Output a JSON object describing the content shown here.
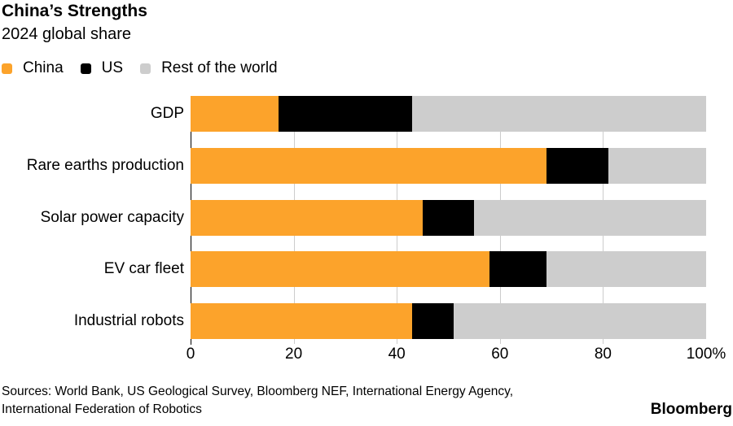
{
  "header": {
    "title": "China’s Strengths",
    "subtitle": "2024 global share"
  },
  "chart_data": {
    "type": "bar",
    "orientation": "horizontal",
    "stacked": true,
    "title": "China’s Strengths",
    "subtitle": "2024 global share",
    "categories": [
      "GDP",
      "Rare earths production",
      "Solar power capacity",
      "EV car fleet",
      "Industrial robots"
    ],
    "series": [
      {
        "name": "China",
        "color": "#FCA32B",
        "values": [
          17,
          69,
          45,
          58,
          43
        ]
      },
      {
        "name": "US",
        "color": "#000000",
        "values": [
          26,
          12,
          10,
          11,
          8
        ]
      },
      {
        "name": "Rest of the world",
        "color": "#CDCDCD",
        "values": [
          57,
          19,
          45,
          31,
          49
        ]
      }
    ],
    "xlim": [
      0,
      100
    ],
    "x_tick_values": [
      0,
      20,
      40,
      60,
      80,
      100
    ],
    "x_ticks": [
      "0",
      "20",
      "40",
      "60",
      "80",
      "100%"
    ],
    "unit": "%",
    "grid": "vertical-in-row-gaps",
    "legend_position": "top"
  },
  "colors": {
    "china": "#FCA32B",
    "us": "#000000",
    "rest_of_world": "#CDCDCD",
    "gridline": "#CCCCCC",
    "axis": "#000000",
    "background": "#FFFFFF"
  },
  "footer": {
    "sources_line1": "Sources: World Bank, US Geological Survey, Bloomberg NEF, International Energy Agency,",
    "sources_line2": "International Federation of Robotics",
    "brand": "Bloomberg"
  }
}
